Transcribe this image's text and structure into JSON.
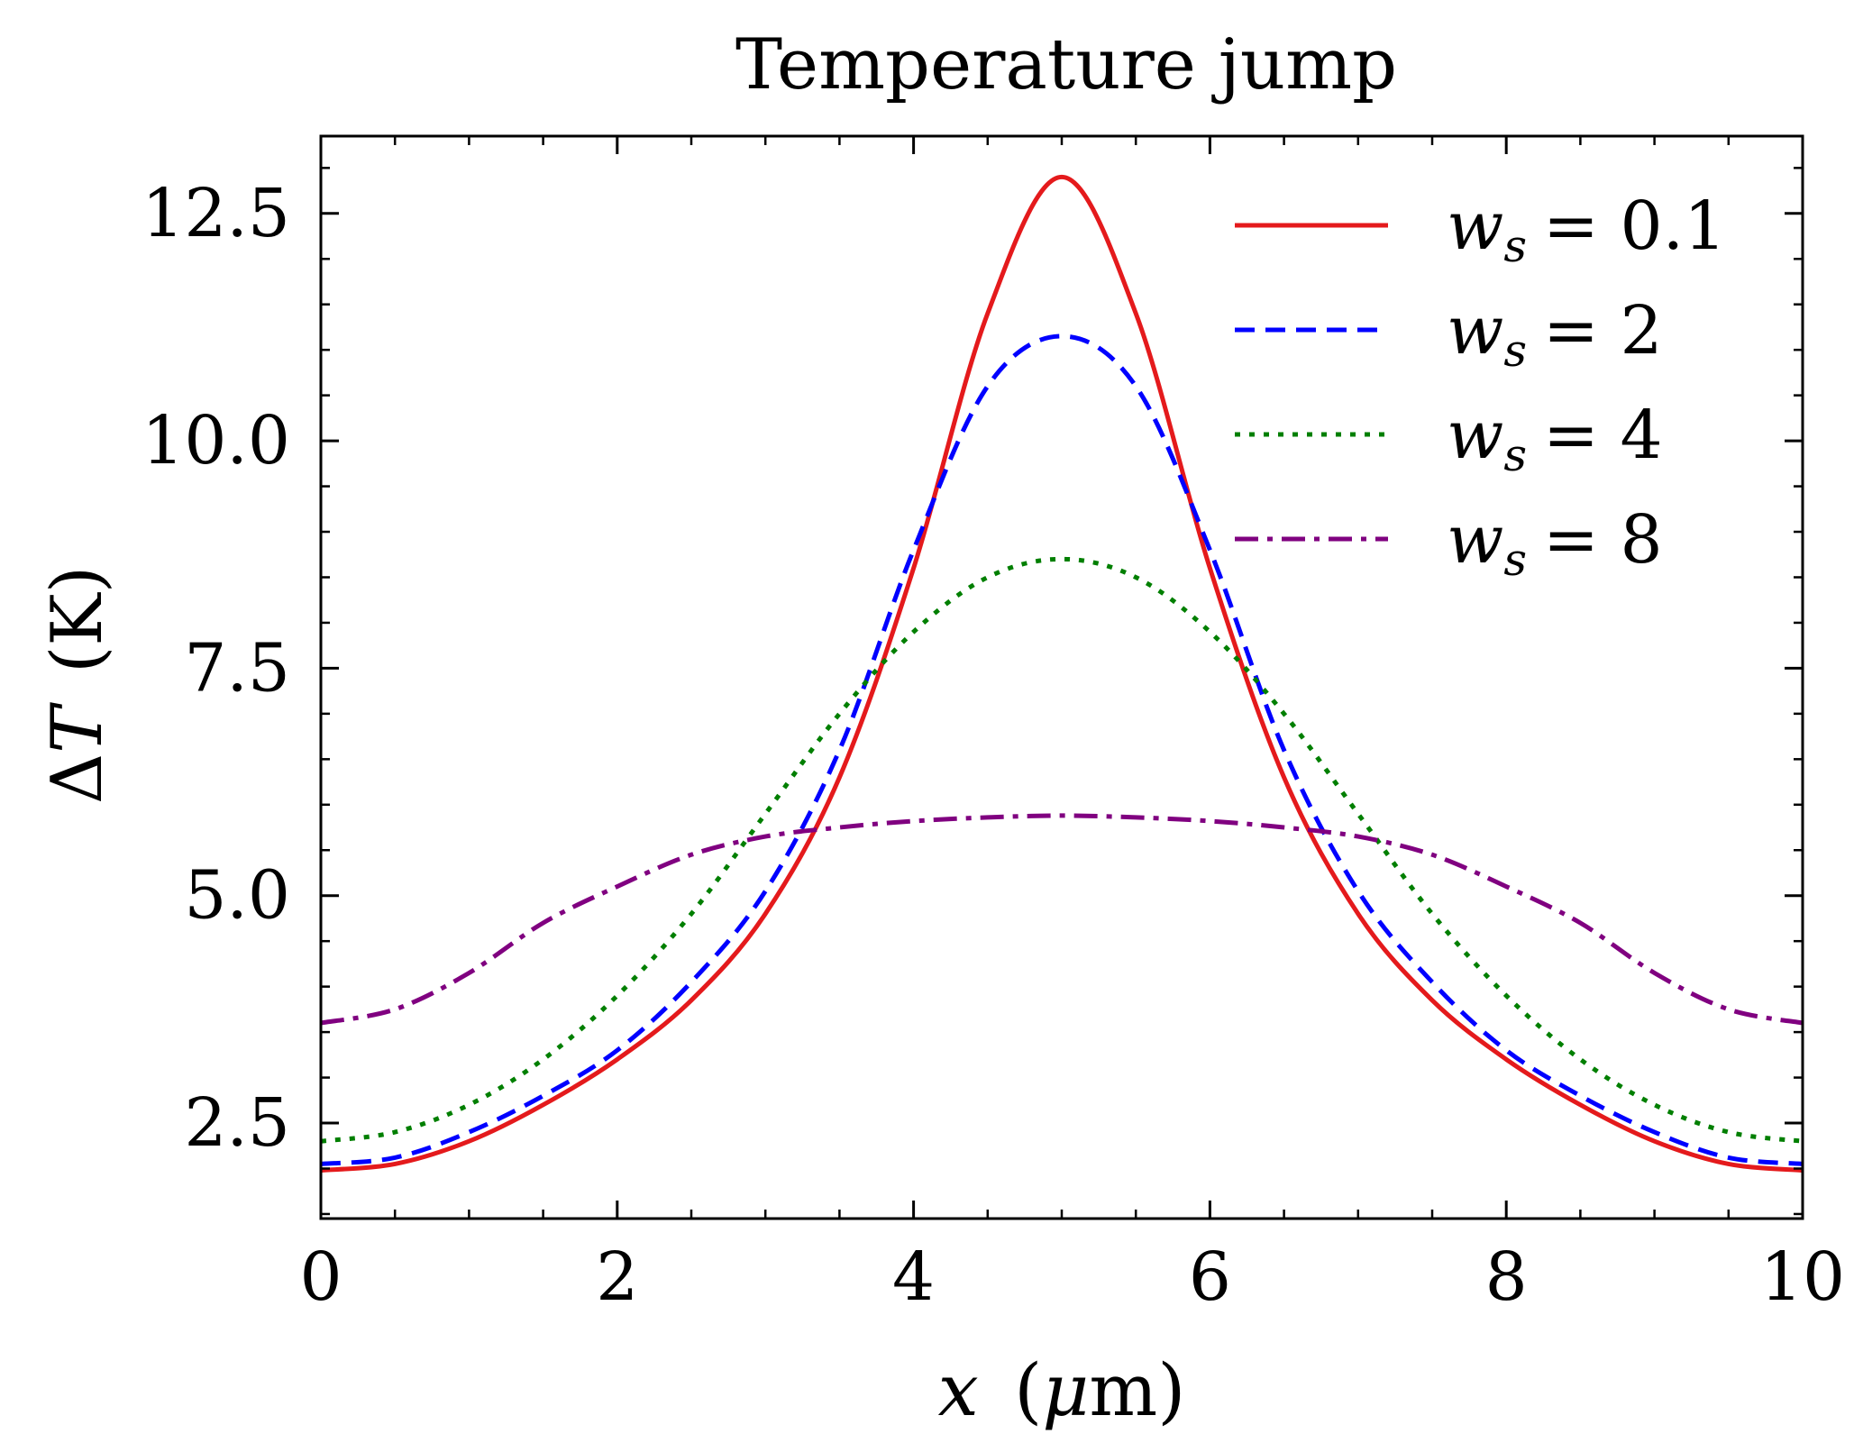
{
  "chart_data": {
    "type": "line",
    "title": "Temperature jump",
    "xlabel": {
      "var": "x",
      "unit_prefix": "μ",
      "unit": "m"
    },
    "ylabel": {
      "delta": "Δ",
      "var": "T",
      "unit": "K"
    },
    "xlim": [
      0,
      10
    ],
    "ylim": [
      1.45,
      13.35
    ],
    "x_ticks": [
      0,
      2,
      4,
      6,
      8,
      10
    ],
    "x_tick_labels": [
      "0",
      "2",
      "4",
      "6",
      "8",
      "10"
    ],
    "y_ticks": [
      2.5,
      5.0,
      7.5,
      10.0,
      12.5
    ],
    "y_tick_labels": [
      "2.5",
      "5.0",
      "7.5",
      "10.0",
      "12.5"
    ],
    "grid": false,
    "legend_position": "top-right",
    "x": [
      0,
      0.5,
      1,
      1.5,
      2,
      2.5,
      3,
      3.5,
      4,
      4.5,
      5,
      5.5,
      6,
      6.5,
      7,
      7.5,
      8,
      8.5,
      9,
      9.5,
      10
    ],
    "series": [
      {
        "name": "w_s = 0.1",
        "legend_var": "w",
        "legend_sub": "s",
        "legend_value": "0.1",
        "color": "#e41a1c",
        "dash": "solid",
        "values": [
          1.98,
          2.05,
          2.3,
          2.7,
          3.2,
          3.85,
          4.8,
          6.3,
          8.6,
          11.4,
          12.9,
          11.4,
          8.6,
          6.3,
          4.8,
          3.85,
          3.2,
          2.7,
          2.3,
          2.05,
          1.98
        ]
      },
      {
        "name": "w_s = 2",
        "legend_var": "w",
        "legend_sub": "s",
        "legend_value": "2",
        "color": "#0000ff",
        "dash": "dashed",
        "values": [
          2.05,
          2.12,
          2.4,
          2.8,
          3.3,
          4.05,
          5.05,
          6.6,
          8.8,
          10.6,
          11.15,
          10.6,
          8.8,
          6.6,
          5.05,
          4.05,
          3.3,
          2.8,
          2.4,
          2.12,
          2.05
        ]
      },
      {
        "name": "w_s = 4",
        "legend_var": "w",
        "legend_sub": "s",
        "legend_value": "4",
        "color": "#007f00",
        "dash": "dotted",
        "values": [
          2.3,
          2.4,
          2.7,
          3.2,
          3.9,
          4.8,
          5.9,
          7.0,
          7.9,
          8.5,
          8.7,
          8.5,
          7.9,
          7.0,
          5.9,
          4.8,
          3.9,
          3.2,
          2.7,
          2.4,
          2.3
        ]
      },
      {
        "name": "w_s = 8",
        "legend_var": "w",
        "legend_sub": "s",
        "legend_value": "8",
        "color": "#800080",
        "dash": "dashdot",
        "values": [
          3.6,
          3.75,
          4.15,
          4.7,
          5.1,
          5.45,
          5.65,
          5.75,
          5.82,
          5.86,
          5.88,
          5.86,
          5.82,
          5.75,
          5.65,
          5.45,
          5.1,
          4.7,
          4.15,
          3.75,
          3.6
        ]
      }
    ]
  }
}
